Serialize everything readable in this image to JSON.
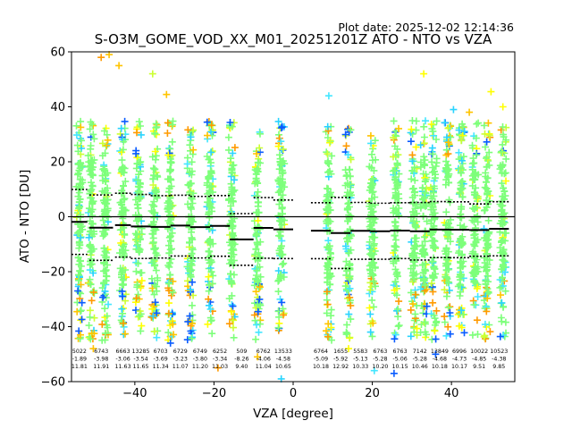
{
  "chart_data": {
    "type": "scatter",
    "title": "S-O3M_GOME_VOD_XX_M01_20251201Z ATO - NTO vs VZA",
    "plot_date": "Plot date: 2025-12-02 12:14:36",
    "xlabel": "VZA [degree]",
    "ylabel": "ATO - NTO [DU]",
    "xlim": [
      -56,
      56
    ],
    "ylim": [
      -60,
      60
    ],
    "xticks": [
      -40,
      -20,
      0,
      20,
      40
    ],
    "yticks": [
      -60,
      -40,
      -20,
      0,
      20,
      40,
      60
    ],
    "grid": false,
    "zero_line": 0,
    "bins": [
      {
        "x": -54,
        "hw": 2,
        "count": "5022",
        "mean": -1.89,
        "std": 11.81
      },
      {
        "x": -48.5,
        "hw": 3,
        "count": "6743",
        "mean": -3.98,
        "std": 11.91
      },
      {
        "x": -43,
        "hw": 2,
        "count": "6663",
        "mean": -3.06,
        "std": 11.63
      },
      {
        "x": -38.5,
        "hw": 2.5,
        "count": "13285",
        "mean": -3.54,
        "std": 11.65
      },
      {
        "x": -33.5,
        "hw": 2.5,
        "count": "6703",
        "mean": -3.69,
        "std": 11.34
      },
      {
        "x": -28.5,
        "hw": 2.5,
        "count": "6729",
        "mean": -3.23,
        "std": 11.07
      },
      {
        "x": -23.5,
        "hw": 2.5,
        "count": "6749",
        "mean": -3.8,
        "std": 11.2
      },
      {
        "x": -18.5,
        "hw": 2.5,
        "count": "6252",
        "mean": -3.34,
        "std": 11.03
      },
      {
        "x": -13,
        "hw": 3,
        "count": "509",
        "mean": -8.26,
        "std": 9.4
      },
      {
        "x": -7.5,
        "hw": 2.5,
        "count": "6762",
        "mean": -4.06,
        "std": 11.04
      },
      {
        "x": -2.5,
        "hw": 2.5,
        "count": "13533",
        "mean": -4.58,
        "std": 10.65
      },
      {
        "x": 7,
        "hw": 2.5,
        "count": "6764",
        "mean": -5.09,
        "std": 10.18
      },
      {
        "x": 12,
        "hw": 2.5,
        "count": "1655",
        "mean": -5.92,
        "std": 12.92
      },
      {
        "x": 17,
        "hw": 2.5,
        "count": "5583",
        "mean": -5.13,
        "std": 10.33
      },
      {
        "x": 22,
        "hw": 2.5,
        "count": "6763",
        "mean": -5.28,
        "std": 10.2
      },
      {
        "x": 27,
        "hw": 2.5,
        "count": "6763",
        "mean": -5.06,
        "std": 10.15
      },
      {
        "x": 32,
        "hw": 2.5,
        "count": "7142",
        "mean": -5.28,
        "std": 10.46
      },
      {
        "x": 37,
        "hw": 2.5,
        "count": "13849",
        "mean": -4.68,
        "std": 10.18
      },
      {
        "x": 42,
        "hw": 2.5,
        "count": "6996",
        "mean": -4.73,
        "std": 10.17
      },
      {
        "x": 47,
        "hw": 2.5,
        "count": "10022",
        "mean": -4.85,
        "std": 9.51
      },
      {
        "x": 52,
        "hw": 2.5,
        "count": "10523",
        "mean": -4.38,
        "std": 9.85
      }
    ],
    "scatter_columns_vza": [
      -54,
      -51,
      -47.5,
      -43,
      -39,
      -35,
      -31,
      -26,
      -21,
      -15.5,
      -9,
      -3,
      9,
      14,
      20,
      26,
      30.5,
      33,
      35.5,
      39,
      42.5,
      46,
      49,
      53
    ],
    "scatter_range": [
      -45,
      35
    ],
    "scatter_extremes": [
      {
        "x": -48.5,
        "y": 58
      },
      {
        "x": -46.5,
        "y": 59
      },
      {
        "x": -44,
        "y": 55
      },
      {
        "x": -35.5,
        "y": 52
      },
      {
        "x": -32,
        "y": 44.5
      },
      {
        "x": -31,
        "y": -46
      },
      {
        "x": -50.5,
        "y": -48
      },
      {
        "x": -19,
        "y": -55
      },
      {
        "x": -9,
        "y": -51
      },
      {
        "x": -3,
        "y": -59
      },
      {
        "x": 9,
        "y": 44
      },
      {
        "x": 14,
        "y": -48
      },
      {
        "x": 20.5,
        "y": -56
      },
      {
        "x": 25.5,
        "y": -57
      },
      {
        "x": 33,
        "y": 52
      },
      {
        "x": 36,
        "y": -50
      },
      {
        "x": 50,
        "y": 45.5
      },
      {
        "x": 53,
        "y": 40
      },
      {
        "x": 40.5,
        "y": 39
      },
      {
        "x": 44.5,
        "y": 38
      }
    ],
    "colors": [
      "#7dff7a",
      "#7dff7a",
      "#7dff7a",
      "#7dff7a",
      "#7dff7a",
      "#44e6ff",
      "#2ad4ff",
      "#ccff33",
      "#ffff00",
      "#ffc400",
      "#ff9a00",
      "#0a5cff"
    ]
  }
}
